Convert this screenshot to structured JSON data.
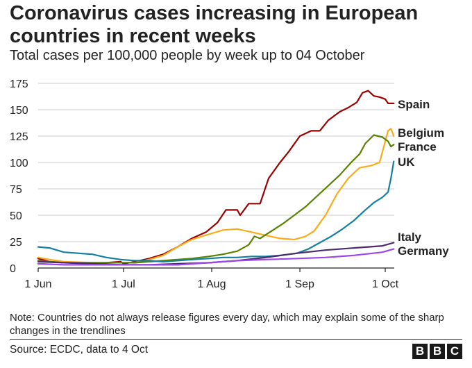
{
  "header": {
    "title": "Coronavirus cases increasing in European countries in recent weeks",
    "subtitle": "Total cases per 100,000 people by week up to 04 October"
  },
  "footer": {
    "note": "Note: Countries do not always release figures every day, which may explain some of the sharp changes in the trendlines",
    "source": "Source: ECDC, data to 4 Oct",
    "logo_letters": [
      "B",
      "B",
      "C"
    ]
  },
  "chart_data": {
    "type": "line",
    "title": "Coronavirus cases increasing in European countries in recent weeks",
    "subtitle": "Total cases per 100,000 people by week up to 04 October",
    "xlabel": "",
    "ylabel": "",
    "x_axis": {
      "start": "2020-06-01",
      "end": "2020-10-04",
      "ticks": [
        {
          "date": "2020-06-01",
          "label": "1 Jun"
        },
        {
          "date": "2020-07-01",
          "label": "1 Jul"
        },
        {
          "date": "2020-08-01",
          "label": "1 Aug"
        },
        {
          "date": "2020-09-01",
          "label": "1 Sep"
        },
        {
          "date": "2020-10-01",
          "label": "1 Oct"
        }
      ]
    },
    "ylim": [
      0,
      175
    ],
    "yticks": [
      0,
      25,
      50,
      75,
      100,
      125,
      150,
      175
    ],
    "grid": "horizontal",
    "legend": "direct labels at line ends (right)",
    "series": [
      {
        "name": "Spain",
        "color": "#990000",
        "points": [
          [
            "2020-06-01",
            9
          ],
          [
            "2020-06-05",
            6
          ],
          [
            "2020-06-10",
            5
          ],
          [
            "2020-06-15",
            5
          ],
          [
            "2020-06-20",
            4
          ],
          [
            "2020-06-25",
            5
          ],
          [
            "2020-06-30",
            6
          ],
          [
            "2020-07-01",
            4
          ],
          [
            "2020-07-05",
            6
          ],
          [
            "2020-07-10",
            9
          ],
          [
            "2020-07-15",
            13
          ],
          [
            "2020-07-20",
            20
          ],
          [
            "2020-07-25",
            28
          ],
          [
            "2020-07-30",
            34
          ],
          [
            "2020-08-03",
            43
          ],
          [
            "2020-08-06",
            55
          ],
          [
            "2020-08-10",
            55
          ],
          [
            "2020-08-11",
            50
          ],
          [
            "2020-08-14",
            61
          ],
          [
            "2020-08-18",
            61
          ],
          [
            "2020-08-21",
            85
          ],
          [
            "2020-08-25",
            100
          ],
          [
            "2020-08-28",
            110
          ],
          [
            "2020-09-01",
            125
          ],
          [
            "2020-09-05",
            130
          ],
          [
            "2020-09-08",
            130
          ],
          [
            "2020-09-11",
            140
          ],
          [
            "2020-09-15",
            148
          ],
          [
            "2020-09-18",
            152
          ],
          [
            "2020-09-21",
            157
          ],
          [
            "2020-09-23",
            166
          ],
          [
            "2020-09-25",
            168
          ],
          [
            "2020-09-27",
            163
          ],
          [
            "2020-09-29",
            162
          ],
          [
            "2020-10-01",
            160
          ],
          [
            "2020-10-02",
            156
          ],
          [
            "2020-10-04",
            156
          ]
        ]
      },
      {
        "name": "Belgium",
        "color": "#FAAB18",
        "points": [
          [
            "2020-06-01",
            10
          ],
          [
            "2020-06-05",
            8
          ],
          [
            "2020-06-10",
            6
          ],
          [
            "2020-06-20",
            5
          ],
          [
            "2020-06-30",
            5
          ],
          [
            "2020-07-05",
            5
          ],
          [
            "2020-07-10",
            8
          ],
          [
            "2020-07-15",
            12
          ],
          [
            "2020-07-20",
            20
          ],
          [
            "2020-07-25",
            27
          ],
          [
            "2020-07-31",
            32
          ],
          [
            "2020-08-05",
            36
          ],
          [
            "2020-08-10",
            37
          ],
          [
            "2020-08-15",
            34
          ],
          [
            "2020-08-20",
            31
          ],
          [
            "2020-08-25",
            28
          ],
          [
            "2020-08-30",
            27
          ],
          [
            "2020-09-03",
            30
          ],
          [
            "2020-09-06",
            35
          ],
          [
            "2020-09-10",
            50
          ],
          [
            "2020-09-14",
            70
          ],
          [
            "2020-09-18",
            85
          ],
          [
            "2020-09-22",
            95
          ],
          [
            "2020-09-26",
            97
          ],
          [
            "2020-09-29",
            100
          ],
          [
            "2020-10-01",
            120
          ],
          [
            "2020-10-02",
            130
          ],
          [
            "2020-10-03",
            132
          ],
          [
            "2020-10-04",
            125
          ]
        ]
      },
      {
        "name": "France",
        "color": "#588300",
        "points": [
          [
            "2020-06-01",
            7
          ],
          [
            "2020-06-05",
            6
          ],
          [
            "2020-06-10",
            5
          ],
          [
            "2020-06-20",
            5
          ],
          [
            "2020-06-30",
            5
          ],
          [
            "2020-07-05",
            5
          ],
          [
            "2020-07-10",
            6
          ],
          [
            "2020-07-15",
            7
          ],
          [
            "2020-07-20",
            8
          ],
          [
            "2020-07-25",
            9
          ],
          [
            "2020-07-31",
            11
          ],
          [
            "2020-08-05",
            13
          ],
          [
            "2020-08-10",
            16
          ],
          [
            "2020-08-14",
            22
          ],
          [
            "2020-08-16",
            30
          ],
          [
            "2020-08-18",
            28
          ],
          [
            "2020-08-22",
            35
          ],
          [
            "2020-08-26",
            42
          ],
          [
            "2020-08-30",
            50
          ],
          [
            "2020-09-03",
            58
          ],
          [
            "2020-09-07",
            68
          ],
          [
            "2020-09-11",
            78
          ],
          [
            "2020-09-15",
            88
          ],
          [
            "2020-09-19",
            100
          ],
          [
            "2020-09-22",
            108
          ],
          [
            "2020-09-24",
            118
          ],
          [
            "2020-09-27",
            126
          ],
          [
            "2020-09-30",
            124
          ],
          [
            "2020-10-02",
            120
          ],
          [
            "2020-10-03",
            115
          ],
          [
            "2020-10-04",
            117
          ]
        ]
      },
      {
        "name": "UK",
        "color": "#1380A1",
        "points": [
          [
            "2020-06-01",
            20
          ],
          [
            "2020-06-05",
            19
          ],
          [
            "2020-06-10",
            15
          ],
          [
            "2020-06-15",
            14
          ],
          [
            "2020-06-20",
            13
          ],
          [
            "2020-06-25",
            10
          ],
          [
            "2020-06-30",
            8
          ],
          [
            "2020-07-05",
            7
          ],
          [
            "2020-07-10",
            7
          ],
          [
            "2020-07-15",
            6
          ],
          [
            "2020-07-20",
            7
          ],
          [
            "2020-07-25",
            8
          ],
          [
            "2020-07-31",
            9
          ],
          [
            "2020-08-05",
            10
          ],
          [
            "2020-08-10",
            10
          ],
          [
            "2020-08-15",
            11
          ],
          [
            "2020-08-20",
            11
          ],
          [
            "2020-08-25",
            12
          ],
          [
            "2020-08-31",
            14
          ],
          [
            "2020-09-04",
            18
          ],
          [
            "2020-09-08",
            24
          ],
          [
            "2020-09-12",
            30
          ],
          [
            "2020-09-16",
            37
          ],
          [
            "2020-09-20",
            45
          ],
          [
            "2020-09-24",
            55
          ],
          [
            "2020-09-27",
            62
          ],
          [
            "2020-09-30",
            67
          ],
          [
            "2020-10-02",
            72
          ],
          [
            "2020-10-03",
            85
          ],
          [
            "2020-10-04",
            101
          ]
        ]
      },
      {
        "name": "Italy",
        "color": "#4B2A6F",
        "points": [
          [
            "2020-06-01",
            6
          ],
          [
            "2020-06-10",
            5
          ],
          [
            "2020-06-20",
            4
          ],
          [
            "2020-06-30",
            3
          ],
          [
            "2020-07-10",
            3
          ],
          [
            "2020-07-20",
            4
          ],
          [
            "2020-07-31",
            5
          ],
          [
            "2020-08-10",
            7
          ],
          [
            "2020-08-20",
            10
          ],
          [
            "2020-08-31",
            14
          ],
          [
            "2020-09-10",
            17
          ],
          [
            "2020-09-20",
            19
          ],
          [
            "2020-09-30",
            21
          ],
          [
            "2020-10-04",
            24
          ]
        ]
      },
      {
        "name": "Germany",
        "color": "#9D46E8",
        "points": [
          [
            "2020-06-01",
            4
          ],
          [
            "2020-06-10",
            3
          ],
          [
            "2020-06-20",
            3
          ],
          [
            "2020-06-30",
            3
          ],
          [
            "2020-07-10",
            3
          ],
          [
            "2020-07-20",
            3
          ],
          [
            "2020-07-31",
            5
          ],
          [
            "2020-08-10",
            7
          ],
          [
            "2020-08-20",
            8
          ],
          [
            "2020-08-31",
            9
          ],
          [
            "2020-09-10",
            10
          ],
          [
            "2020-09-20",
            12
          ],
          [
            "2020-09-30",
            15
          ],
          [
            "2020-10-04",
            18
          ]
        ]
      }
    ]
  }
}
